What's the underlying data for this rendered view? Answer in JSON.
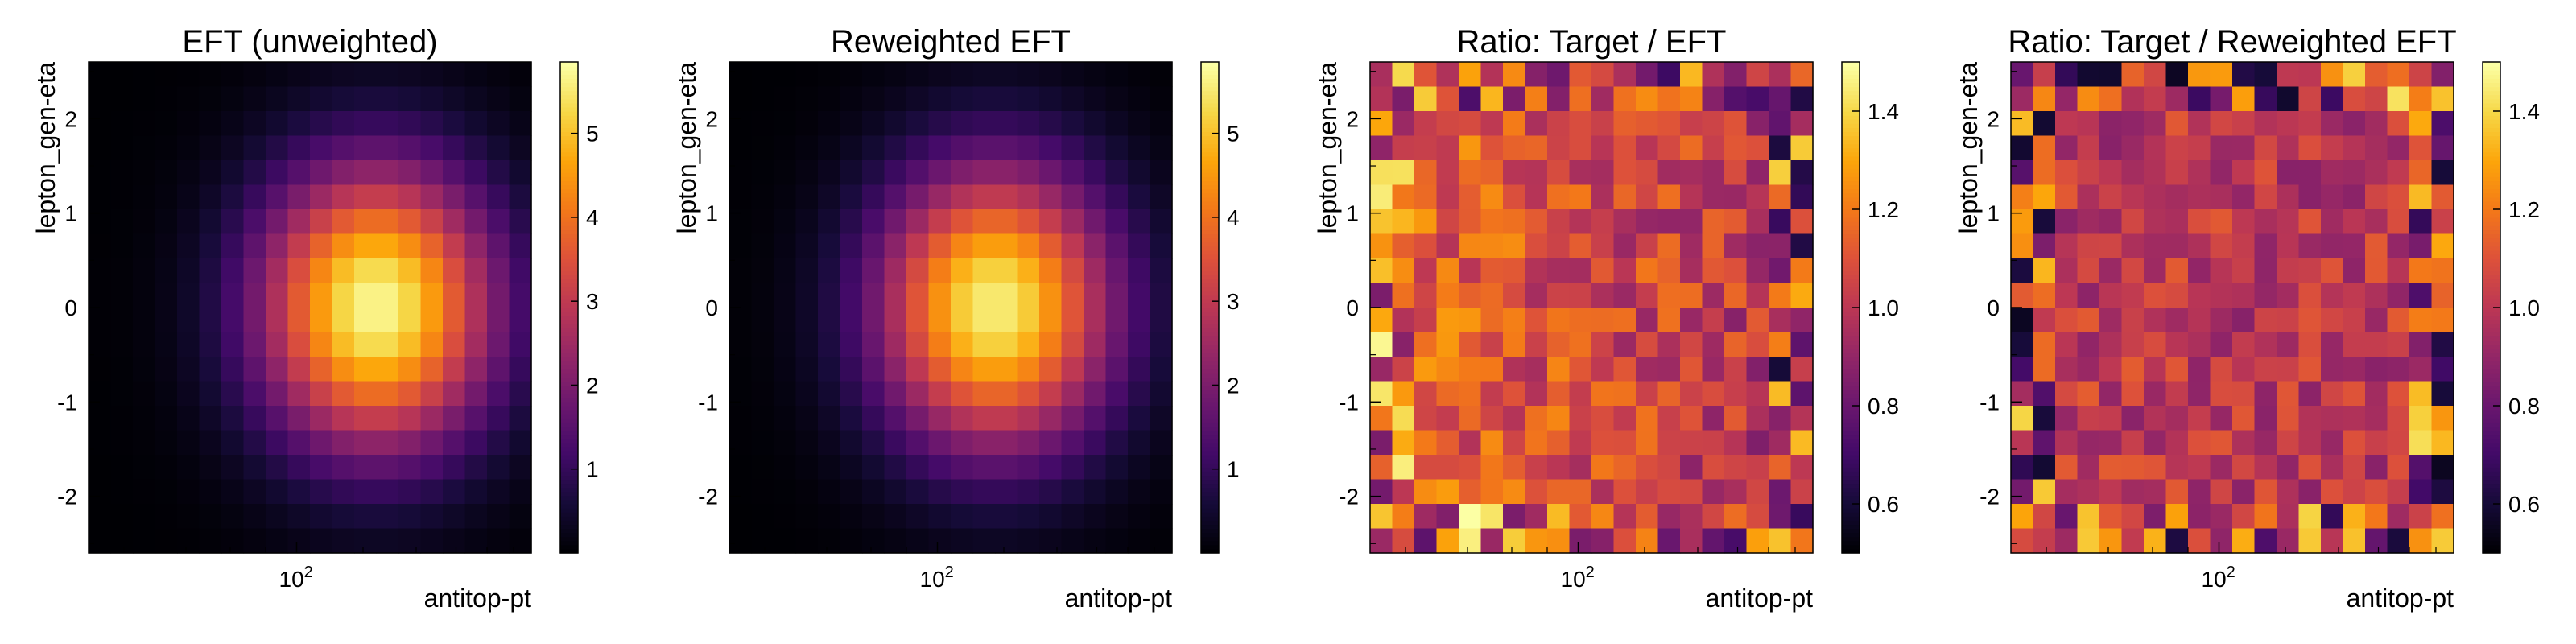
{
  "figure": {
    "panels": [
      {
        "title": "EFT (unweighted)",
        "xlabel": "antitop-pt",
        "ylabel": "lepton_gen-eta",
        "kind": "density",
        "y_ticks": [
          "2",
          "1",
          "0",
          "-1",
          "-2"
        ],
        "x_tick": "10",
        "x_tick_exp": "2",
        "colorbar": {
          "min": 0.0,
          "max": 5.85,
          "ticks": [
            "1",
            "2",
            "3",
            "4",
            "5"
          ],
          "tick_values": [
            1,
            2,
            3,
            4,
            5
          ]
        }
      },
      {
        "title": "Reweighted EFT",
        "xlabel": "antitop-pt",
        "ylabel": "lepton_gen-eta",
        "kind": "density",
        "y_ticks": [
          "2",
          "1",
          "0",
          "-1",
          "-2"
        ],
        "x_tick": "10",
        "x_tick_exp": "2",
        "colorbar": {
          "min": 0.0,
          "max": 5.85,
          "ticks": [
            "1",
            "2",
            "3",
            "4",
            "5"
          ],
          "tick_values": [
            1,
            2,
            3,
            4,
            5
          ]
        }
      },
      {
        "title": "Ratio: Target / EFT",
        "xlabel": "antitop-pt",
        "ylabel": "lepton_gen-eta",
        "kind": "ratio",
        "y_ticks": [
          "2",
          "1",
          "0",
          "-1",
          "-2"
        ],
        "x_tick": "10",
        "x_tick_exp": "2",
        "colorbar": {
          "min": 0.5,
          "max": 1.5,
          "ticks": [
            "0.6",
            "0.8",
            "1.0",
            "1.2",
            "1.4"
          ],
          "tick_values": [
            0.6,
            0.8,
            1.0,
            1.2,
            1.4
          ]
        }
      },
      {
        "title": "Ratio: Target / Reweighted EFT",
        "xlabel": "antitop-pt",
        "ylabel": "lepton_gen-eta",
        "kind": "ratio",
        "y_ticks": [
          "2",
          "1",
          "0",
          "-1",
          "-2"
        ],
        "x_tick": "10",
        "x_tick_exp": "2",
        "colorbar": {
          "min": 0.5,
          "max": 1.5,
          "ticks": [
            "0.6",
            "0.8",
            "1.0",
            "1.2",
            "1.4"
          ],
          "tick_values": [
            0.6,
            0.8,
            1.0,
            1.2,
            1.4
          ]
        }
      }
    ]
  },
  "chart_data": [
    {
      "type": "heatmap",
      "title": "EFT (unweighted)",
      "xlabel": "antitop-pt",
      "ylabel": "lepton_gen-eta",
      "x_scale": "log",
      "ylim": [
        -2.6,
        2.6
      ],
      "colormap": "inferno",
      "zlim": [
        0.0,
        5.85
      ],
      "x_bins": 20,
      "y_bins": 20,
      "generator": {
        "peak": 5.75,
        "x_center_bin": 13.0,
        "x_sigma_bins": 3.7,
        "y_sigma": 1.05
      }
    },
    {
      "type": "heatmap",
      "title": "Reweighted EFT",
      "xlabel": "antitop-pt",
      "ylabel": "lepton_gen-eta",
      "x_scale": "log",
      "ylim": [
        -2.6,
        2.6
      ],
      "colormap": "inferno",
      "zlim": [
        0.0,
        5.85
      ],
      "x_bins": 20,
      "y_bins": 20,
      "generator": {
        "peak": 5.6,
        "x_center_bin": 12.0,
        "x_sigma_bins": 3.7,
        "y_sigma": 1.05
      }
    },
    {
      "type": "heatmap",
      "title": "Ratio: Target / EFT",
      "xlabel": "antitop-pt",
      "ylabel": "lepton_gen-eta",
      "x_scale": "log",
      "ylim": [
        -2.6,
        2.6
      ],
      "colormap": "inferno",
      "zlim": [
        0.5,
        1.5
      ],
      "x_bins": 20,
      "y_bins": 20,
      "generator": {
        "base": 1.07,
        "x_slope": -0.18,
        "noise": 0.15,
        "edge_noise": 0.4,
        "seed": 17
      }
    },
    {
      "type": "heatmap",
      "title": "Ratio: Target / Reweighted EFT",
      "xlabel": "antitop-pt",
      "ylabel": "lepton_gen-eta",
      "x_scale": "log",
      "ylim": [
        -2.6,
        2.6
      ],
      "colormap": "inferno",
      "zlim": [
        0.5,
        1.5
      ],
      "x_bins": 20,
      "y_bins": 20,
      "generator": {
        "base": 1.0,
        "x_slope": 0.0,
        "noise": 0.13,
        "edge_noise": 0.45,
        "seed": 91
      }
    }
  ]
}
